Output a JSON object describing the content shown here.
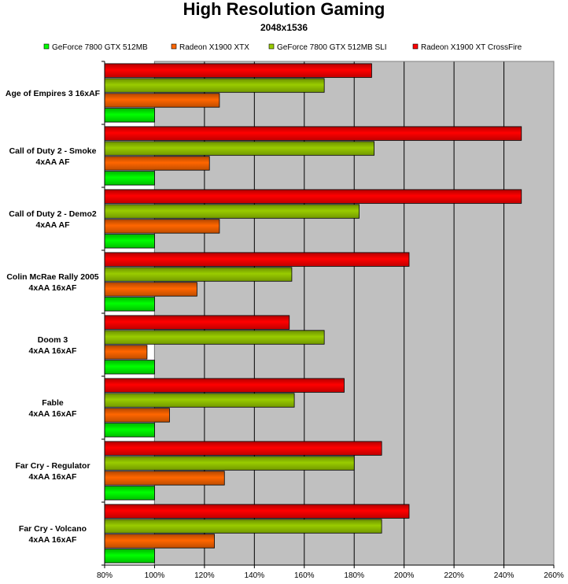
{
  "chart_data": {
    "type": "bar",
    "orientation": "horizontal",
    "title": "High Resolution Gaming",
    "subtitle": "2048x1536",
    "categories": [
      [
        "Age of Empires 3 16xAF"
      ],
      [
        "Call of Duty 2 - Smoke",
        "4xAA AF"
      ],
      [
        "Call of Duty 2 - Demo2",
        "4xAA AF"
      ],
      [
        "Colin McRae Rally 2005",
        "4xAA 16xAF"
      ],
      [
        "Doom 3",
        "4xAA 16xAF"
      ],
      [
        "Fable",
        "4xAA 16xAF"
      ],
      [
        "Far Cry - Regulator",
        "4xAA 16xAF"
      ],
      [
        "Far Cry - Volcano",
        "4xAA 16xAF"
      ]
    ],
    "series": [
      {
        "name": "GeForce 7800 GTX 512MB",
        "color": "#00ff00",
        "values": [
          100,
          100,
          100,
          100,
          100,
          100,
          100,
          100
        ]
      },
      {
        "name": "Radeon X1900 XTX",
        "color": "#ff6600",
        "values": [
          126,
          122,
          126,
          117,
          97,
          106,
          128,
          124
        ]
      },
      {
        "name": "GeForce 7800 GTX 512MB SLI",
        "color": "#99cc00",
        "values": [
          168,
          188,
          182,
          155,
          168,
          156,
          180,
          191
        ]
      },
      {
        "name": "Radeon X1900 XT CrossFire",
        "color": "#ff0000",
        "values": [
          187,
          247,
          247,
          202,
          154,
          176,
          191,
          202
        ]
      }
    ],
    "xlim": [
      80,
      260
    ],
    "xticks": [
      "80%",
      "100%",
      "120%",
      "140%",
      "160%",
      "180%",
      "200%",
      "220%",
      "240%",
      "260%"
    ],
    "xtick_values": [
      80,
      100,
      120,
      140,
      160,
      180,
      200,
      220,
      240,
      260
    ],
    "grid": true,
    "legend_position": "top",
    "plot_background": "#c0c0c0"
  }
}
